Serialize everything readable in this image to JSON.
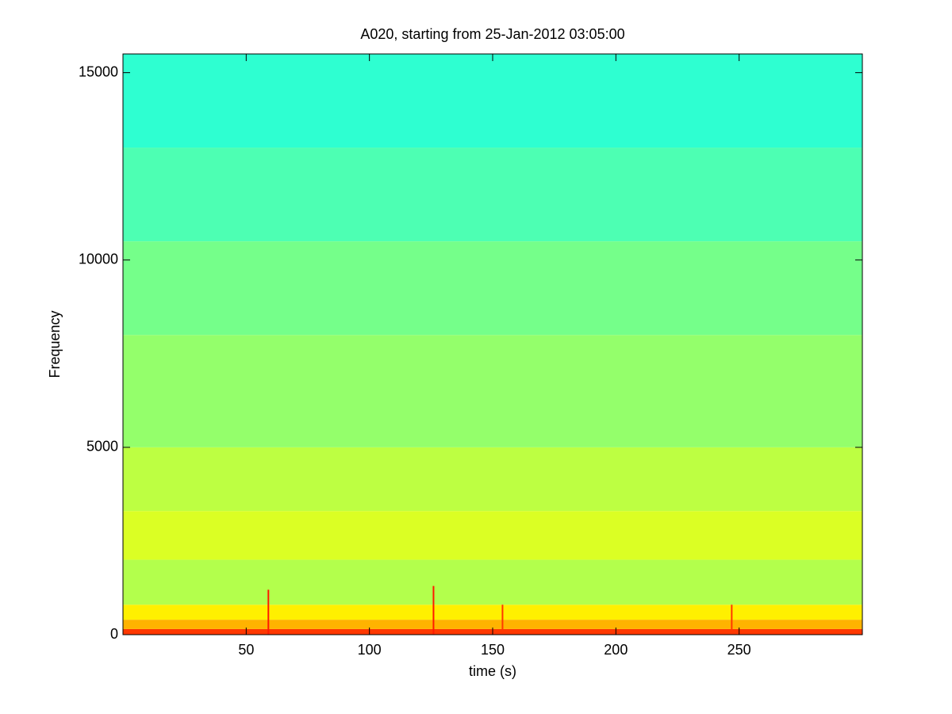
{
  "chart_data": {
    "type": "spectrogram",
    "title": "A020, starting from 25-Jan-2012 03:05:00",
    "xlabel": "time (s)",
    "ylabel": "Frequency",
    "xlim": [
      0,
      300
    ],
    "ylim": [
      0,
      15500
    ],
    "xticks": [
      50,
      100,
      150,
      200,
      250
    ],
    "yticks": [
      0,
      5000,
      10000,
      15000
    ],
    "colormap": "jet",
    "grid": false,
    "bands": [
      {
        "from": 0,
        "to": 150,
        "level": 0.82
      },
      {
        "from": 150,
        "to": 400,
        "level": 0.7
      },
      {
        "from": 400,
        "to": 800,
        "level": 0.64
      },
      {
        "from": 800,
        "to": 2000,
        "level": 0.55
      },
      {
        "from": 2000,
        "to": 3300,
        "level": 0.59
      },
      {
        "from": 3300,
        "to": 5000,
        "level": 0.56
      },
      {
        "from": 5000,
        "to": 8000,
        "level": 0.52
      },
      {
        "from": 8000,
        "to": 10500,
        "level": 0.49
      },
      {
        "from": 10500,
        "to": 13000,
        "level": 0.45
      },
      {
        "from": 13000,
        "to": 15500,
        "level": 0.42
      }
    ],
    "spikes": [
      {
        "x": 59,
        "top": 1200,
        "level": 0.85
      },
      {
        "x": 126,
        "top": 1300,
        "level": 0.85
      },
      {
        "x": 154,
        "top": 800,
        "level": 0.82
      },
      {
        "x": 247,
        "top": 800,
        "level": 0.82
      }
    ]
  }
}
